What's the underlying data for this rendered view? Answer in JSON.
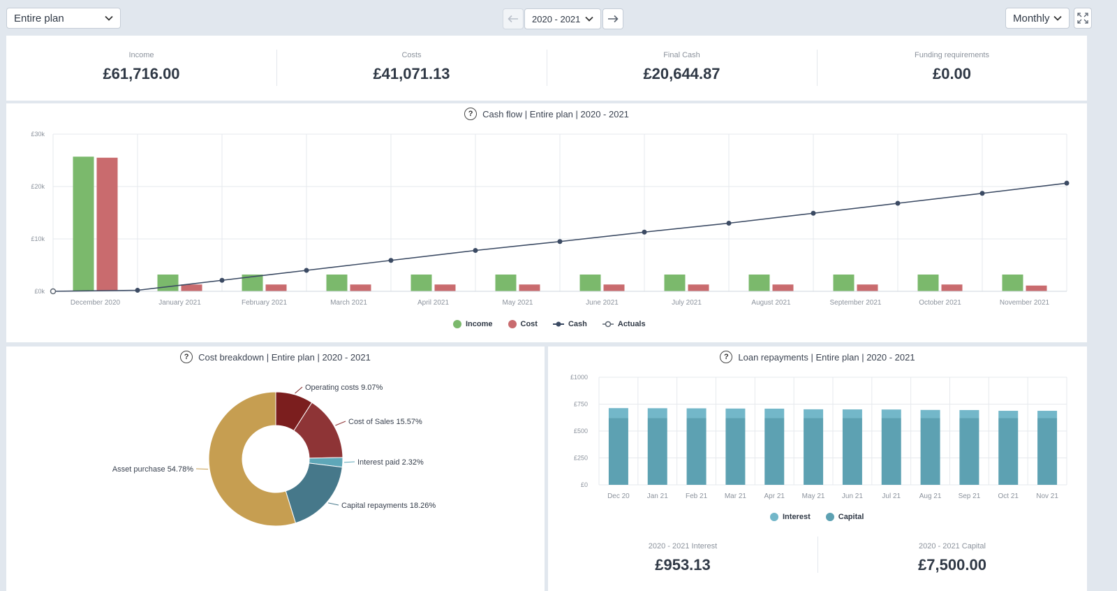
{
  "toolbar": {
    "plan_select": "Entire plan",
    "year_select": "2020 - 2021",
    "period_select": "Monthly"
  },
  "kpis": [
    {
      "label": "Income",
      "value": "£61,716.00"
    },
    {
      "label": "Costs",
      "value": "£41,071.13"
    },
    {
      "label": "Final Cash",
      "value": "£20,644.87"
    },
    {
      "label": "Funding requirements",
      "value": "£0.00"
    }
  ],
  "cashflow": {
    "title": "Cash flow | Entire plan | 2020 - 2021",
    "legend": [
      {
        "label": "Income",
        "color": "#7bb96c"
      },
      {
        "label": "Cost",
        "color": "#c96b6e"
      },
      {
        "label": "Cash",
        "color": "#3b4a63"
      },
      {
        "label": "Actuals",
        "color": "#ffffff"
      }
    ]
  },
  "cost_breakdown": {
    "title": "Cost breakdown | Entire plan | 2020 - 2021"
  },
  "loan": {
    "title": "Loan repayments | Entire plan | 2020 - 2021",
    "legend": [
      {
        "label": "Interest",
        "color": "#73b7c9"
      },
      {
        "label": "Capital",
        "color": "#5da1b2"
      }
    ],
    "totals": [
      {
        "label": "2020 - 2021 Interest",
        "value": "£953.13"
      },
      {
        "label": "2020 - 2021 Capital",
        "value": "£7,500.00"
      }
    ]
  },
  "chart_data": [
    {
      "type": "bar",
      "title": "Cash flow | Entire plan | 2020 - 2021",
      "categories": [
        "December 2020",
        "January 2021",
        "February 2021",
        "March 2021",
        "April 2021",
        "May 2021",
        "June 2021",
        "July 2021",
        "August 2021",
        "September 2021",
        "October 2021",
        "November 2021"
      ],
      "y_ticks": [
        "£0k",
        "£10k",
        "£20k",
        "£30k"
      ],
      "ylim": [
        0,
        30000
      ],
      "series": [
        {
          "name": "Income",
          "type": "bar",
          "color": "#7bb96c",
          "values": [
            25700,
            3200,
            3200,
            3200,
            3200,
            3200,
            3200,
            3200,
            3200,
            3200,
            3200,
            3200
          ]
        },
        {
          "name": "Cost",
          "type": "bar",
          "color": "#c96b6e",
          "values": [
            25500,
            1300,
            1300,
            1300,
            1300,
            1300,
            1300,
            1300,
            1300,
            1300,
            1300,
            1100
          ]
        },
        {
          "name": "Cash",
          "type": "line",
          "color": "#3b4a63",
          "values": [
            200,
            2100,
            4000,
            5900,
            7800,
            9500,
            11300,
            13000,
            14900,
            16800,
            18700,
            20645
          ]
        }
      ],
      "legend_position": "bottom"
    },
    {
      "type": "pie",
      "title": "Cost breakdown | Entire plan | 2020 - 2021",
      "slices": [
        {
          "label": "Operating costs",
          "pct": "9.07%",
          "value": 9.07,
          "color": "#7b1e1e"
        },
        {
          "label": "Cost of Sales",
          "pct": "15.57%",
          "value": 15.57,
          "color": "#8e3436"
        },
        {
          "label": "Interest paid",
          "pct": "2.32%",
          "value": 2.32,
          "color": "#5ea7b8"
        },
        {
          "label": "Capital repayments",
          "pct": "18.26%",
          "value": 18.26,
          "color": "#46788a"
        },
        {
          "label": "Asset purchase",
          "pct": "54.78%",
          "value": 54.78,
          "color": "#c69e51"
        }
      ]
    },
    {
      "type": "bar",
      "title": "Loan repayments | Entire plan | 2020 - 2021",
      "categories": [
        "Dec 20",
        "Jan 21",
        "Feb 21",
        "Mar 21",
        "Apr 21",
        "May 21",
        "Jun 21",
        "Jul 21",
        "Aug 21",
        "Sep 21",
        "Oct 21",
        "Nov 21"
      ],
      "y_ticks": [
        "£0",
        "£250",
        "£500",
        "£750",
        "£1000"
      ],
      "ylim": [
        0,
        1000
      ],
      "stacked": true,
      "series": [
        {
          "name": "Capital",
          "color": "#5da1b2",
          "values": [
            620,
            620,
            620,
            620,
            620,
            620,
            620,
            620,
            620,
            620,
            620,
            620
          ]
        },
        {
          "name": "Interest",
          "color": "#73b7c9",
          "values": [
            93,
            92,
            91,
            89,
            88,
            82,
            81,
            80,
            76,
            75,
            68,
            68
          ]
        }
      ],
      "legend_position": "bottom"
    }
  ]
}
